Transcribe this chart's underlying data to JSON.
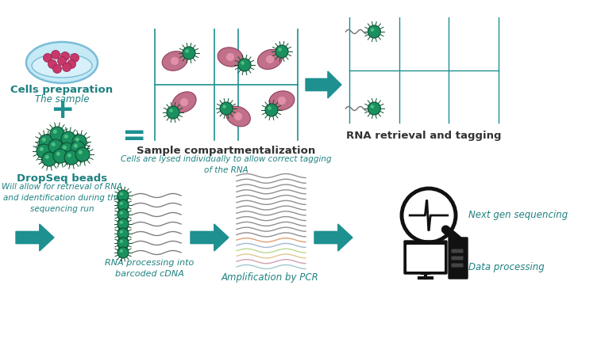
{
  "background_color": "#ffffff",
  "teal": "#1e9090",
  "teal_dark": "#0d6060",
  "teal_text": "#1e8080",
  "teal_label": "#2090a0",
  "pink_cell": "#b05878",
  "pink_fill": "#c06880",
  "green_bead": "#1a9060",
  "green_dark": "#0d5030",
  "green_highlight": "#50c080",
  "gray_line": "#808080",
  "black": "#111111",
  "labels": {
    "cells_prep": "Cells preparation",
    "the_sample": "The sample",
    "dropseq_beads": "DropSeq beads",
    "beads_desc": "Will allow for retrieval of RNA\nand identification during the\nsequencing run",
    "compartment": "Sample compartmentalization",
    "compartment_desc": "Cells are lysed individually to allow correct tagging\nof the RNA",
    "rna_retrieval": "RNA retrieval and tagging",
    "rna_processing": "RNA processing into\nbarcoded cDNA",
    "amplification": "Amplification by PCR",
    "next_gen": "Next gen sequencing",
    "data_processing": "Data processing"
  }
}
